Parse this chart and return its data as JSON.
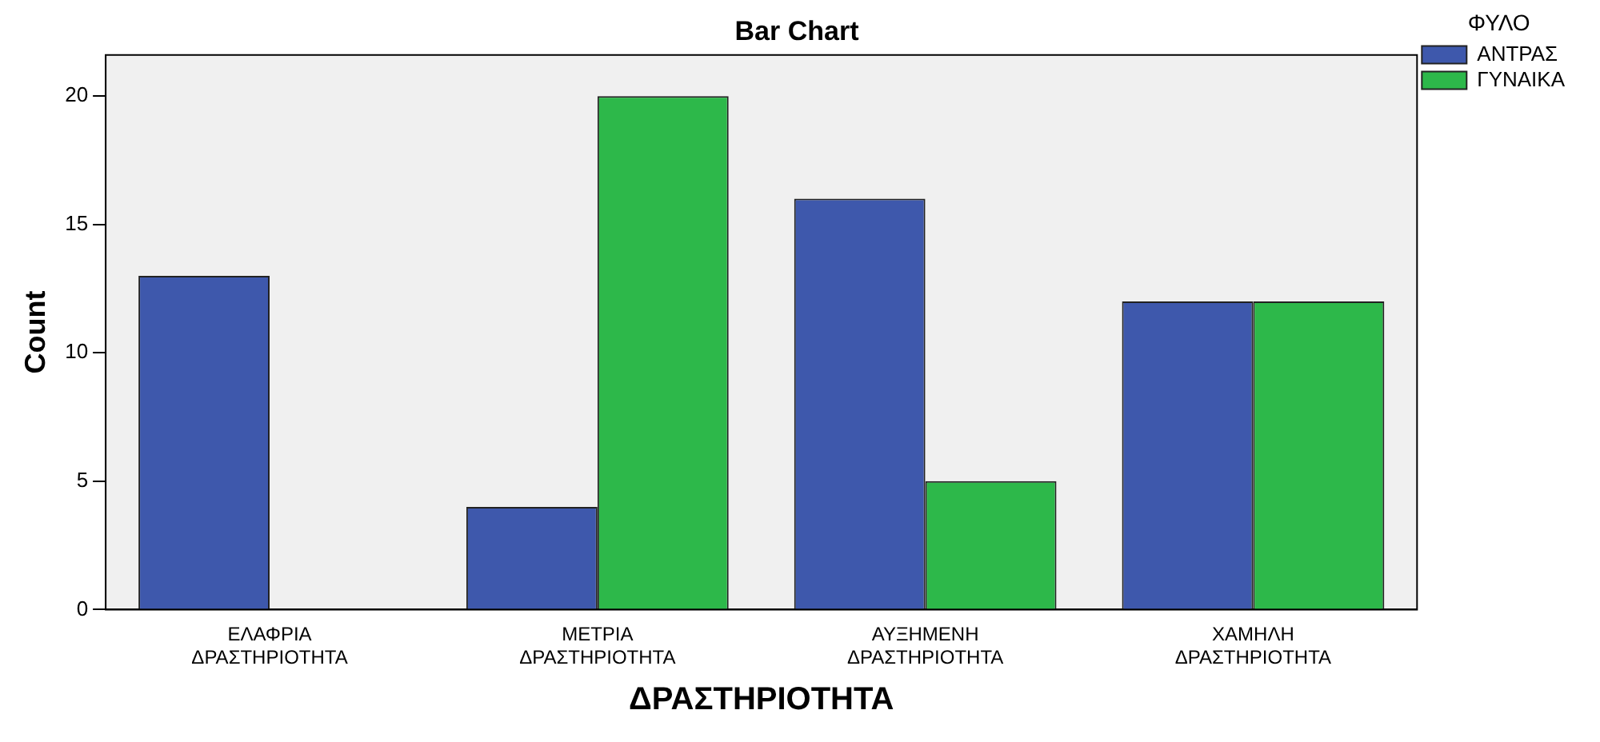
{
  "chart_data": {
    "type": "bar",
    "title": "Bar Chart",
    "xlabel": "ΔΡΑΣΤΗΡΙΟΤΗΤΑ",
    "ylabel": "Count",
    "legend_title": "ΦΥΛΟ",
    "categories": [
      "ΕΛΑΦΡΙΑ\nΔΡΑΣΤΗΡΙΟΤΗΤΑ",
      "ΜΕΤΡΙΑ\nΔΡΑΣΤΗΡΙΟΤΗΤΑ",
      "ΑΥΞΗΜΕΝΗ\nΔΡΑΣΤΗΡΙΟΤΗΤΑ",
      "ΧΑΜΗΛΗ\nΔΡΑΣΤΗΡΙΟΤΗΤΑ"
    ],
    "series": [
      {
        "name": "ΑΝΤΡΑΣ",
        "color": "#3e58ac",
        "values": [
          13,
          4,
          16,
          12
        ]
      },
      {
        "name": "ΓΥΝΑΙΚΑ",
        "color": "#2db84a",
        "values": [
          null,
          20,
          5,
          12
        ]
      }
    ],
    "ylim": [
      0,
      21.6
    ],
    "yticks": [
      0,
      5,
      10,
      15,
      20
    ],
    "grid": false,
    "legend": "top right"
  }
}
